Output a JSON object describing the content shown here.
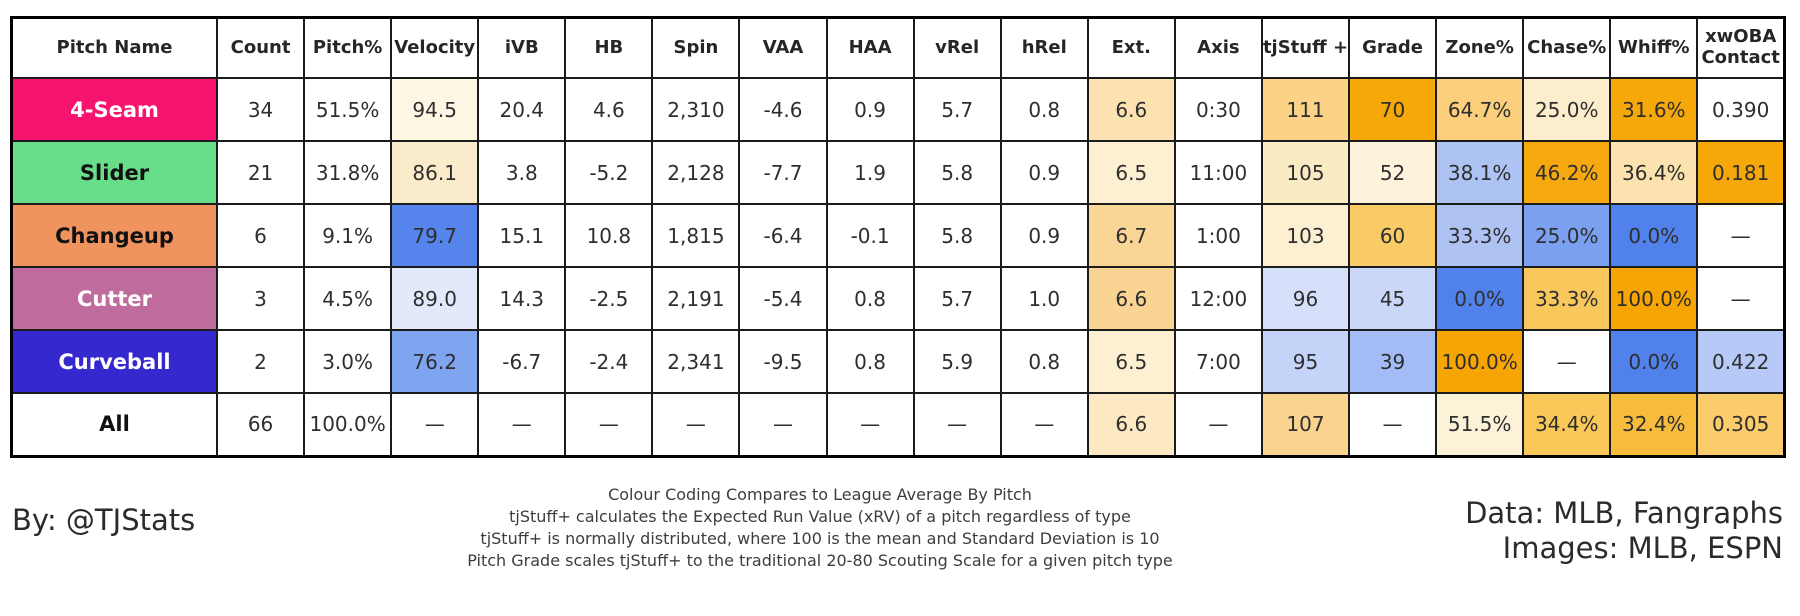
{
  "chart_data": {
    "type": "table",
    "title": "Pitch arsenal summary table (colour coded vs league average)",
    "columns": [
      {
        "key": "pitch-name",
        "label": "Pitch Name"
      },
      {
        "key": "count",
        "label": "Count"
      },
      {
        "key": "pitch-pct",
        "label": "Pitch%"
      },
      {
        "key": "velocity",
        "label": "Velocity"
      },
      {
        "key": "ivb",
        "label": "iVB"
      },
      {
        "key": "hb",
        "label": "HB"
      },
      {
        "key": "spin",
        "label": "Spin"
      },
      {
        "key": "vaa",
        "label": "VAA"
      },
      {
        "key": "haa",
        "label": "HAA"
      },
      {
        "key": "vrel",
        "label": "vRel"
      },
      {
        "key": "hrel",
        "label": "hRel"
      },
      {
        "key": "ext",
        "label": "Ext."
      },
      {
        "key": "axis",
        "label": "Axis"
      },
      {
        "key": "tjstuff-plus",
        "label": "tjStuff +"
      },
      {
        "key": "grade",
        "label": "Grade"
      },
      {
        "key": "zone-pct",
        "label": "Zone%"
      },
      {
        "key": "chase-pct",
        "label": "Chase%"
      },
      {
        "key": "whiff-pct",
        "label": "Whiff%"
      },
      {
        "key": "xwoba-contact",
        "label": "xwOBA\nContact"
      }
    ],
    "rows": [
      {
        "name": "4-Seam",
        "name_bg": "#F7146E",
        "name_fg": "#ffffff",
        "cells": [
          {
            "v": "34"
          },
          {
            "v": "51.5%"
          },
          {
            "v": "94.5",
            "bg": "#FDF6E2"
          },
          {
            "v": "20.4"
          },
          {
            "v": "4.6"
          },
          {
            "v": "2,310"
          },
          {
            "v": "-4.6"
          },
          {
            "v": "0.9"
          },
          {
            "v": "5.7"
          },
          {
            "v": "0.8"
          },
          {
            "v": "6.6",
            "bg": "#FBE2B0"
          },
          {
            "v": "0:30"
          },
          {
            "v": "111",
            "bg": "#FBD286"
          },
          {
            "v": "70",
            "bg": "#F6A808"
          },
          {
            "v": "64.7%",
            "bg": "#FBCF7B"
          },
          {
            "v": "25.0%",
            "bg": "#FCEDCD"
          },
          {
            "v": "31.6%",
            "bg": "#F6A808"
          },
          {
            "v": "0.390"
          }
        ]
      },
      {
        "name": "Slider",
        "name_bg": "#69DE8A",
        "name_fg": "#111111",
        "cells": [
          {
            "v": "21"
          },
          {
            "v": "31.8%"
          },
          {
            "v": "86.1",
            "bg": "#FAEBCA"
          },
          {
            "v": "3.8"
          },
          {
            "v": "-5.2"
          },
          {
            "v": "2,128"
          },
          {
            "v": "-7.7"
          },
          {
            "v": "1.9"
          },
          {
            "v": "5.8"
          },
          {
            "v": "0.9"
          },
          {
            "v": "6.5",
            "bg": "#FCEFD2"
          },
          {
            "v": "11:00"
          },
          {
            "v": "105",
            "bg": "#FBEBC4"
          },
          {
            "v": "52",
            "bg": "#FDF3DB"
          },
          {
            "v": "38.1%",
            "bg": "#ACC3F3"
          },
          {
            "v": "46.2%",
            "bg": "#F6A90F"
          },
          {
            "v": "36.4%",
            "bg": "#FBE2AE"
          },
          {
            "v": "0.181",
            "bg": "#F6A808"
          }
        ]
      },
      {
        "name": "Changeup",
        "name_bg": "#F0945F",
        "name_fg": "#111111",
        "cells": [
          {
            "v": "6"
          },
          {
            "v": "9.1%"
          },
          {
            "v": "79.7",
            "bg": "#5585EC"
          },
          {
            "v": "15.1"
          },
          {
            "v": "10.8"
          },
          {
            "v": "1,815"
          },
          {
            "v": "-6.4"
          },
          {
            "v": "-0.1"
          },
          {
            "v": "5.8"
          },
          {
            "v": "0.9"
          },
          {
            "v": "6.7",
            "bg": "#F9D695"
          },
          {
            "v": "1:00"
          },
          {
            "v": "103",
            "bg": "#FDF0D2"
          },
          {
            "v": "60",
            "bg": "#F8CB67"
          },
          {
            "v": "33.3%",
            "bg": "#AEC3F3"
          },
          {
            "v": "25.0%",
            "bg": "#7BA0F0"
          },
          {
            "v": "0.0%",
            "bg": "#5182EB"
          },
          {
            "v": "—"
          }
        ]
      },
      {
        "name": "Cutter",
        "name_bg": "#BF6B9D",
        "name_fg": "#ffffff",
        "cells": [
          {
            "v": "3"
          },
          {
            "v": "4.5%"
          },
          {
            "v": "89.0",
            "bg": "#E2E9FB"
          },
          {
            "v": "14.3"
          },
          {
            "v": "-2.5"
          },
          {
            "v": "2,191"
          },
          {
            "v": "-5.4"
          },
          {
            "v": "0.8"
          },
          {
            "v": "5.7"
          },
          {
            "v": "1.0"
          },
          {
            "v": "6.6",
            "bg": "#F9D492"
          },
          {
            "v": "12:00"
          },
          {
            "v": "96",
            "bg": "#D6E0FA"
          },
          {
            "v": "45",
            "bg": "#CAD7F8"
          },
          {
            "v": "0.0%",
            "bg": "#5182EB"
          },
          {
            "v": "33.3%",
            "bg": "#F9C85D"
          },
          {
            "v": "100.0%",
            "bg": "#F6A502"
          },
          {
            "v": "—"
          }
        ]
      },
      {
        "name": "Curveball",
        "name_bg": "#3528CE",
        "name_fg": "#ffffff",
        "cells": [
          {
            "v": "2"
          },
          {
            "v": "3.0%"
          },
          {
            "v": "76.2",
            "bg": "#7FA5F1"
          },
          {
            "v": "-6.7"
          },
          {
            "v": "-2.4"
          },
          {
            "v": "2,341"
          },
          {
            "v": "-9.5"
          },
          {
            "v": "0.8"
          },
          {
            "v": "5.9"
          },
          {
            "v": "0.8"
          },
          {
            "v": "6.5",
            "bg": "#FCEFD2"
          },
          {
            "v": "7:00"
          },
          {
            "v": "95",
            "bg": "#C4D3F8"
          },
          {
            "v": "39",
            "bg": "#A3BCF5"
          },
          {
            "v": "100.0%",
            "bg": "#F6A502"
          },
          {
            "v": "—"
          },
          {
            "v": "0.0%",
            "bg": "#5182EB"
          },
          {
            "v": "0.422",
            "bg": "#B7CAF7"
          }
        ]
      },
      {
        "name": "All",
        "name_bg": "#FFFFFF",
        "name_fg": "#111111",
        "cells": [
          {
            "v": "66"
          },
          {
            "v": "100.0%"
          },
          {
            "v": "—"
          },
          {
            "v": "—"
          },
          {
            "v": "—"
          },
          {
            "v": "—"
          },
          {
            "v": "—"
          },
          {
            "v": "—"
          },
          {
            "v": "—"
          },
          {
            "v": "—"
          },
          {
            "v": "6.6",
            "bg": "#FCE9C3"
          },
          {
            "v": "—"
          },
          {
            "v": "107",
            "bg": "#FAD48E"
          },
          {
            "v": "—"
          },
          {
            "v": "51.5%",
            "bg": "#FCF2D7"
          },
          {
            "v": "34.4%",
            "bg": "#F9C859"
          },
          {
            "v": "32.4%",
            "bg": "#F8BC3D"
          },
          {
            "v": "0.305",
            "bg": "#FACC6B"
          }
        ]
      }
    ],
    "color_legend": {
      "better_than_league_avg": "#F6A808",
      "worse_than_league_avg": "#5182EB",
      "neutral": "#FFFFFF"
    }
  },
  "byline": "By: @TJStats",
  "notes": [
    "Colour Coding Compares to League Average By Pitch",
    "tjStuff+ calculates the Expected Run Value (xRV) of a pitch regardless of type",
    "tjStuff+ is normally distributed, where 100 is the mean and Standard Deviation is 10",
    "Pitch Grade scales tjStuff+ to the traditional 20-80 Scouting Scale for a given pitch type"
  ],
  "credits": [
    "Data: MLB, Fangraphs",
    "Images: MLB, ESPN"
  ]
}
